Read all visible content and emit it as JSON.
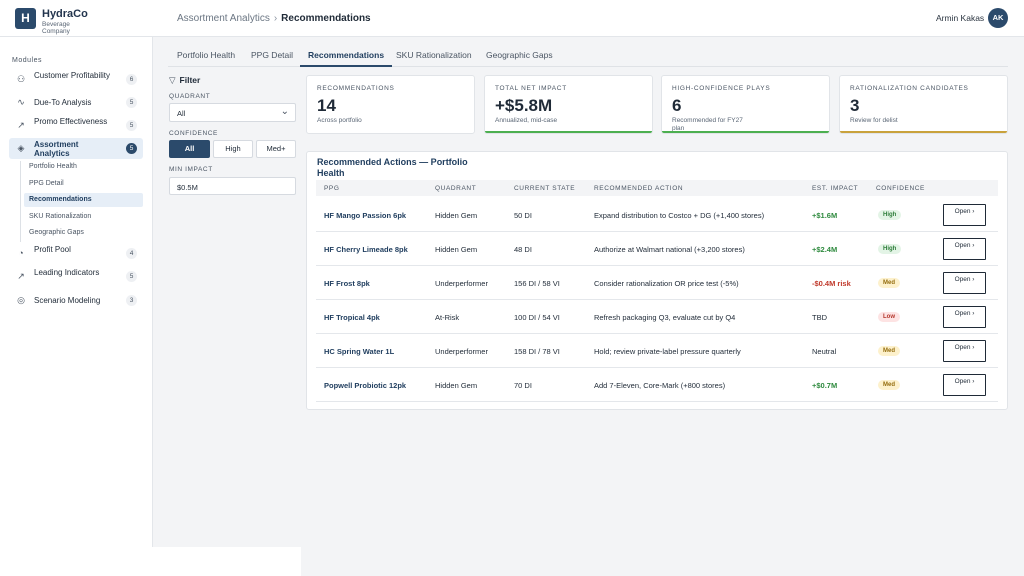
{
  "brand": {
    "initial": "H",
    "name": "HydraCo",
    "subtitle": "Beverage Company"
  },
  "breadcrumb": {
    "parent": "Assortment Analytics",
    "separator": "›",
    "current": "Recommendations"
  },
  "user": {
    "name": "Armin Kakas",
    "initials": "AK"
  },
  "sidebar": {
    "heading": "Modules",
    "items": [
      {
        "icon": "users-icon",
        "glyph": "⚇",
        "label": "Customer Profitability",
        "badge": "6"
      },
      {
        "icon": "activity-icon",
        "glyph": "∿",
        "label": "Due-To Analysis",
        "badge": "5"
      },
      {
        "icon": "trending-up-icon",
        "glyph": "↗",
        "label": "Promo Effectiveness",
        "badge": "5"
      },
      {
        "icon": "layers-icon",
        "glyph": "◈",
        "label": "Assortment Analytics",
        "badge": "5"
      },
      {
        "icon": "pie-chart-icon",
        "glyph": "◔",
        "label": "Profit Pool",
        "badge": "4"
      },
      {
        "icon": "line-chart-icon",
        "glyph": "↗",
        "label": "Leading Indicators",
        "badge": "5"
      },
      {
        "icon": "target-icon",
        "glyph": "◎",
        "label": "Scenario Modeling",
        "badge": "3"
      }
    ],
    "subitems": [
      "Portfolio Health",
      "PPG Detail",
      "Recommendations",
      "SKU Rationalization",
      "Geographic Gaps"
    ]
  },
  "tabs": [
    "Portfolio Health",
    "PPG Detail",
    "Recommendations",
    "SKU Rationalization",
    "Geographic Gaps"
  ],
  "filter": {
    "title": "Filter",
    "quadrant_label": "QUADRANT",
    "quadrant_value": "All",
    "confidence_label": "CONFIDENCE",
    "confidence_options": [
      "All",
      "High",
      "Med+"
    ],
    "min_impact_label": "MIN IMPACT",
    "min_impact_value": "$0.5M"
  },
  "kpis": [
    {
      "label": "RECOMMENDATIONS",
      "value": "14",
      "sub": "Across portfolio",
      "accent": ""
    },
    {
      "label": "TOTAL NET IMPACT",
      "value": "+$5.8M",
      "sub": "Annualized, mid-case",
      "accent": "#4caf50"
    },
    {
      "label": "HIGH-CONFIDENCE PLAYS",
      "value": "6",
      "sub": "Recommended for FY27 plan",
      "accent": "#4caf50"
    },
    {
      "label": "RATIONALIZATION CANDIDATES",
      "value": "3",
      "sub": "Review for delist",
      "accent": "#c9a23c"
    }
  ],
  "table": {
    "title": "Recommended Actions — Portfolio Health",
    "headers": [
      "PPG",
      "QUADRANT",
      "CURRENT STATE",
      "RECOMMENDED ACTION",
      "EST. IMPACT",
      "CONFIDENCE"
    ],
    "rows": [
      {
        "ppg": "HF Mango Passion 6pk",
        "quadrant": "Hidden Gem",
        "state": "50 DI",
        "action": "Expand distribution to Costco + DG (+1,400 stores)",
        "impact": "+$1.6M",
        "impact_tone": "pos",
        "confidence": "High",
        "conf_tone": "high",
        "button": "Open ›"
      },
      {
        "ppg": "HF Cherry Limeade 8pk",
        "quadrant": "Hidden Gem",
        "state": "48 DI",
        "action": "Authorize at Walmart national (+3,200 stores)",
        "impact": "+$2.4M",
        "impact_tone": "pos",
        "confidence": "High",
        "conf_tone": "high",
        "button": "Open ›"
      },
      {
        "ppg": "HF Frost 8pk",
        "quadrant": "Underperformer",
        "state": "156 DI / 58 VI",
        "action": "Consider rationalization OR price test (-5%)",
        "impact": "-$0.4M risk",
        "impact_tone": "neg",
        "confidence": "Med",
        "conf_tone": "med",
        "button": "Open ›"
      },
      {
        "ppg": "HF Tropical 4pk",
        "quadrant": "At-Risk",
        "state": "100 DI / 54 VI",
        "action": "Refresh packaging Q3, evaluate cut by Q4",
        "impact": "TBD",
        "impact_tone": "neutral",
        "confidence": "Low",
        "conf_tone": "low",
        "button": "Open ›"
      },
      {
        "ppg": "HC Spring Water 1L",
        "quadrant": "Underperformer",
        "state": "158 DI / 78 VI",
        "action": "Hold; review private-label pressure quarterly",
        "impact": "Neutral",
        "impact_tone": "neutral",
        "confidence": "Med",
        "conf_tone": "med",
        "button": "Open ›"
      },
      {
        "ppg": "Popwell Probiotic 12pk",
        "quadrant": "Hidden Gem",
        "state": "70 DI",
        "action": "Add 7-Eleven, Core-Mark (+800 stores)",
        "impact": "+$0.7M",
        "impact_tone": "pos",
        "confidence": "Med",
        "conf_tone": "med",
        "button": "Open ›"
      }
    ]
  }
}
